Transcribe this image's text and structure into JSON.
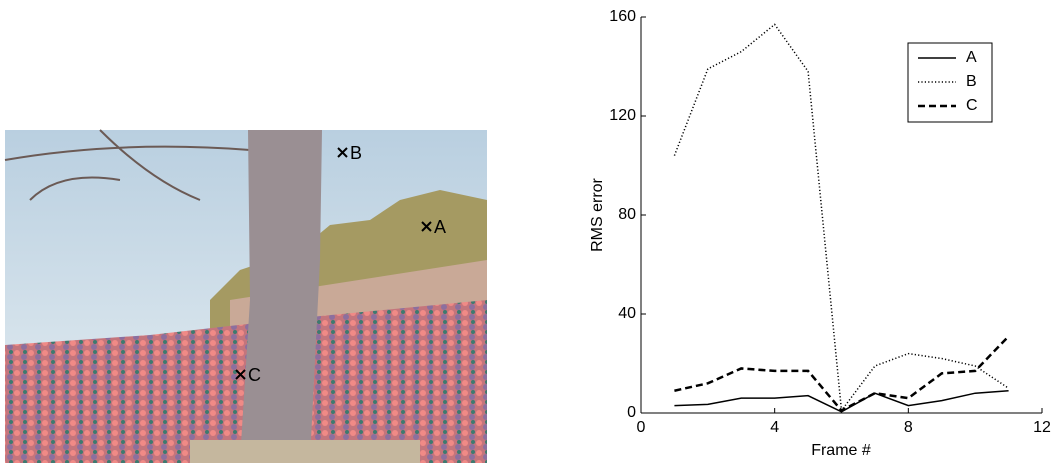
{
  "photo": {
    "markers": [
      "A",
      "B",
      "C"
    ]
  },
  "chart_data": {
    "type": "line",
    "xlabel": "Frame #",
    "ylabel": "RMS error",
    "x": [
      1,
      2,
      3,
      4,
      5,
      6,
      7,
      8,
      9,
      10,
      11
    ],
    "series": [
      {
        "name": "A",
        "color": "#000000",
        "style": "solid",
        "values": [
          3,
          3.5,
          6,
          6,
          7,
          0.5,
          8,
          3,
          5,
          8,
          9
        ]
      },
      {
        "name": "B",
        "color": "#000000",
        "style": "dotted",
        "values": [
          104,
          139,
          146,
          157,
          138,
          1,
          19,
          24,
          22,
          19,
          10
        ]
      },
      {
        "name": "C",
        "color": "#000000",
        "style": "dashed",
        "values": [
          9,
          12,
          18,
          17,
          17,
          1,
          8,
          6,
          16,
          17,
          31
        ]
      }
    ],
    "xlim": [
      0,
      12
    ],
    "xticks": [
      0,
      4,
      8,
      12
    ],
    "ylim": [
      0,
      160
    ],
    "yticks": [
      0,
      40,
      80,
      120,
      160
    ],
    "legend": "upper right"
  }
}
